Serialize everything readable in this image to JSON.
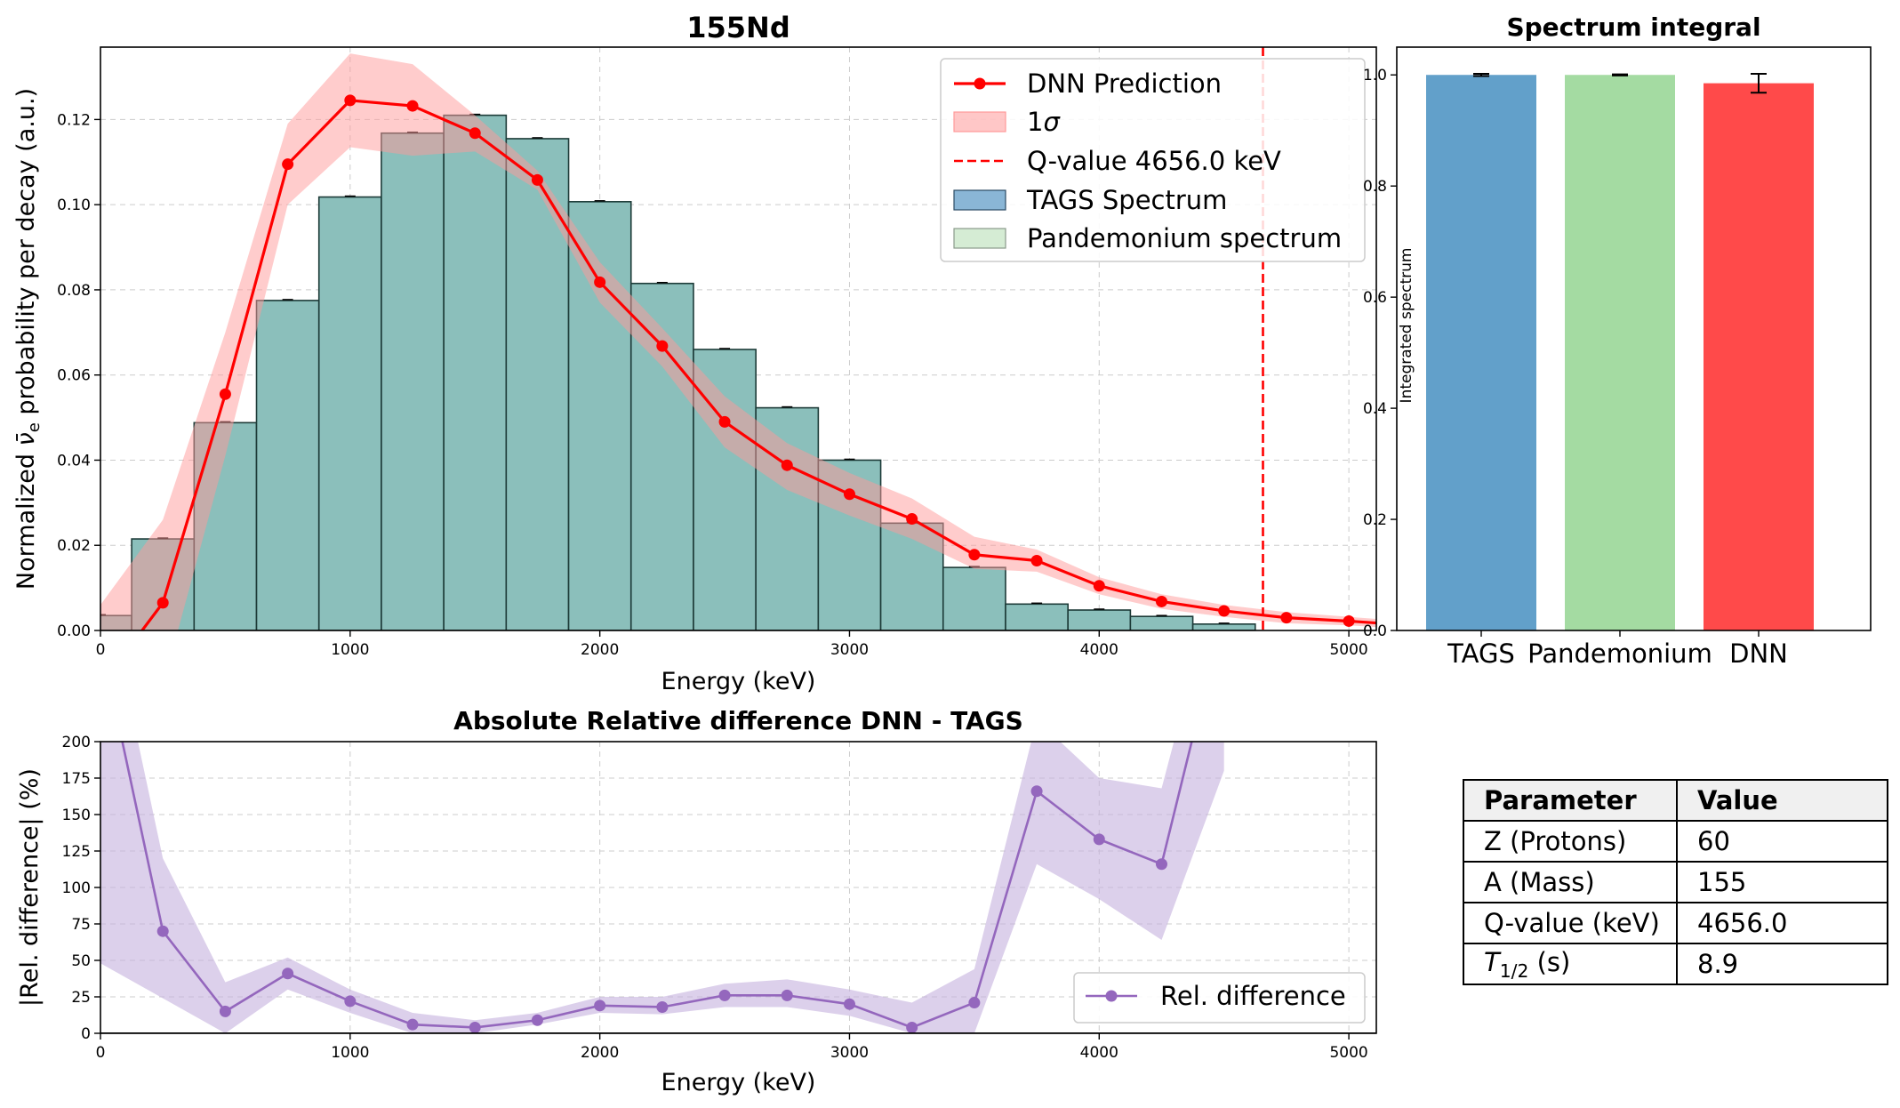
{
  "chart_data": [
    {
      "id": "main",
      "type": "bar+line",
      "title": "155Nd",
      "xlabel": "Energy (keV)",
      "ylabel_parts": [
        "Normalized ",
        "ν̄",
        "e",
        " probability per decay (a.u.)"
      ],
      "xlim": [
        0,
        5110
      ],
      "ylim": [
        0,
        0.137
      ],
      "xticks": [
        0,
        1000,
        2000,
        3000,
        4000,
        5000
      ],
      "yticks": [
        0.0,
        0.02,
        0.04,
        0.06,
        0.08,
        0.1,
        0.12
      ],
      "grid": true,
      "bin_width": 250,
      "bins_center": [
        0,
        250,
        500,
        750,
        1000,
        1250,
        1500,
        1750,
        2000,
        2250,
        2500,
        2750,
        3000,
        3250,
        3500,
        3750,
        4000,
        4250,
        4500
      ],
      "tags_values": [
        0.0035,
        0.0215,
        0.0488,
        0.0775,
        0.1018,
        0.1168,
        0.121,
        0.1155,
        0.1007,
        0.0815,
        0.066,
        0.0523,
        0.04,
        0.0252,
        0.0148,
        0.0062,
        0.0048,
        0.0033,
        0.0015
      ],
      "pandemonium_values": [
        0.0035,
        0.0215,
        0.0488,
        0.0775,
        0.1018,
        0.1168,
        0.121,
        0.1155,
        0.1007,
        0.0815,
        0.066,
        0.0523,
        0.04,
        0.0252,
        0.0148,
        0.0062,
        0.0048,
        0.0033,
        0.0015
      ],
      "dnn_x": [
        0,
        250,
        500,
        750,
        1000,
        1250,
        1500,
        1750,
        2000,
        2250,
        2500,
        2750,
        3000,
        3250,
        3500,
        3750,
        4000,
        4250,
        4500,
        4750,
        5000,
        5250
      ],
      "dnn_y": [
        -0.013,
        0.0065,
        0.0555,
        0.1095,
        0.1245,
        0.1232,
        0.1168,
        0.1058,
        0.0818,
        0.0668,
        0.049,
        0.0388,
        0.032,
        0.0262,
        0.0178,
        0.0164,
        0.0105,
        0.0068,
        0.0046,
        0.003,
        0.0022,
        0.0012
      ],
      "dnn_upper": [
        0.006,
        0.026,
        0.07,
        0.119,
        0.1355,
        0.133,
        0.121,
        0.108,
        0.0865,
        0.071,
        0.055,
        0.044,
        0.037,
        0.031,
        0.022,
        0.019,
        0.0125,
        0.0085,
        0.006,
        0.0043,
        0.0032,
        0.0021
      ],
      "dnn_lower": [
        -0.03,
        -0.013,
        0.041,
        0.1,
        0.1135,
        0.1115,
        0.1125,
        0.1035,
        0.077,
        0.062,
        0.043,
        0.033,
        0.027,
        0.0215,
        0.0145,
        0.0138,
        0.0085,
        0.0051,
        0.0032,
        0.0017,
        0.0012,
        0.0003
      ],
      "qvalue": 4656.0,
      "colors": {
        "tags": "#1f77b4",
        "pandemonium": "#2ca02c",
        "overlap": "#8bbfbb",
        "dnn": "#ff0000",
        "band": "#ff9999",
        "qline": "#ff0000"
      },
      "legend": {
        "position": "top-right",
        "entries": [
          "DNN Prediction",
          "1σ",
          "Q-value 4656.0 keV",
          "TAGS Spectrum",
          "Pandemonium spectrum"
        ]
      }
    },
    {
      "id": "integral",
      "type": "bar",
      "title": "Spectrum integral",
      "ylabel": "Integrated spectrum",
      "categories": [
        "TAGS",
        "Pandemonium",
        "DNN"
      ],
      "values": [
        1.0,
        1.0,
        0.985
      ],
      "errors": [
        0.002,
        0.001,
        0.017
      ],
      "ylim": [
        0,
        1.05
      ],
      "yticks": [
        0.0,
        0.2,
        0.4,
        0.6,
        0.8,
        1.0
      ],
      "colors": [
        "#62a0ca",
        "#a4dba2",
        "#ff4a4a"
      ]
    },
    {
      "id": "reldiff",
      "type": "line",
      "title": "Absolute Relative difference DNN - TAGS",
      "xlabel": "Energy (keV)",
      "ylabel": "|Rel. difference| (%)",
      "xlim": [
        0,
        5110
      ],
      "ylim": [
        0,
        200
      ],
      "xticks": [
        0,
        1000,
        2000,
        3000,
        4000,
        5000
      ],
      "yticks": [
        0,
        25,
        50,
        75,
        100,
        125,
        150,
        175,
        200
      ],
      "grid": true,
      "x": [
        0,
        250,
        500,
        750,
        1000,
        1250,
        1500,
        1750,
        2000,
        2250,
        2500,
        2750,
        3000,
        3250,
        3500,
        3750,
        4000,
        4250,
        4500
      ],
      "y": [
        270,
        70,
        15,
        41,
        22,
        6,
        4,
        9,
        19,
        18,
        26,
        26,
        20,
        4,
        21,
        166,
        133,
        116,
        290
      ],
      "upper": [
        320,
        120,
        35,
        52,
        30,
        14,
        9,
        14,
        25,
        25,
        34,
        37,
        30,
        21,
        44,
        215,
        175,
        168,
        330
      ],
      "lower": [
        48,
        24,
        0,
        30,
        14,
        0,
        0,
        6,
        14,
        13,
        18,
        18,
        12,
        0,
        0,
        116,
        92,
        64,
        180
      ],
      "color": "#9467bd",
      "band_color": "#c5b0dd",
      "legend": {
        "position": "bottom-right",
        "entries": [
          "Rel. difference"
        ]
      }
    }
  ],
  "table": {
    "header": [
      "Parameter",
      "Value"
    ],
    "rows": [
      {
        "param": "Z (Protons)",
        "value": "60"
      },
      {
        "param": "A (Mass)",
        "value": "155"
      },
      {
        "param": "Q-value (keV)",
        "value": "4656.0"
      },
      {
        "param_main": "T",
        "param_sub": "1/2",
        "param_unit": " (s)",
        "value": "8.9"
      }
    ]
  }
}
